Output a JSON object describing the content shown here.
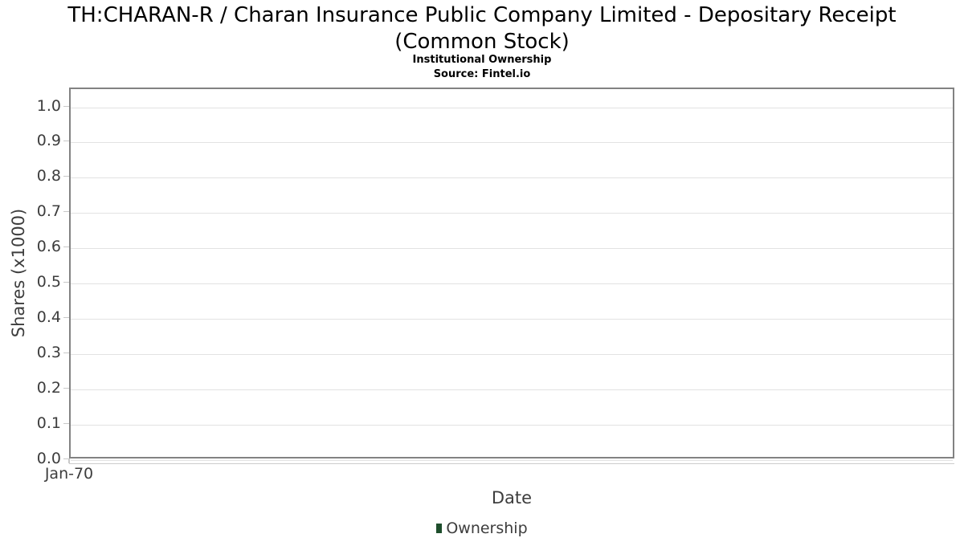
{
  "chart_data": {
    "type": "line",
    "title": "TH:CHARAN-R / Charan Insurance Public Company Limited - Depositary Receipt\n(Common Stock)",
    "subtitle": "Institutional Ownership",
    "source": "Source: Fintel.io",
    "xlabel": "Date",
    "ylabel": "Shares (x1000)",
    "yticks": [
      "1.0",
      "0.9",
      "0.8",
      "0.7",
      "0.6",
      "0.5",
      "0.4",
      "0.3",
      "0.2",
      "0.1",
      "0.0"
    ],
    "ylim": [
      0.0,
      1.05
    ],
    "xticks": [
      "Jan-70"
    ],
    "grid": "horizontal-only",
    "legend_position": "bottom-center",
    "series": [
      {
        "name": "Ownership",
        "color": "#1e4e2c",
        "x": [],
        "values": []
      }
    ]
  },
  "colors": {
    "plot_border": "#828282",
    "gridline": "#e2e2e2",
    "tick": "#c8c8c8",
    "axis_text": "#3d3d3d",
    "title_text": "#000000",
    "background": "#ffffff"
  }
}
